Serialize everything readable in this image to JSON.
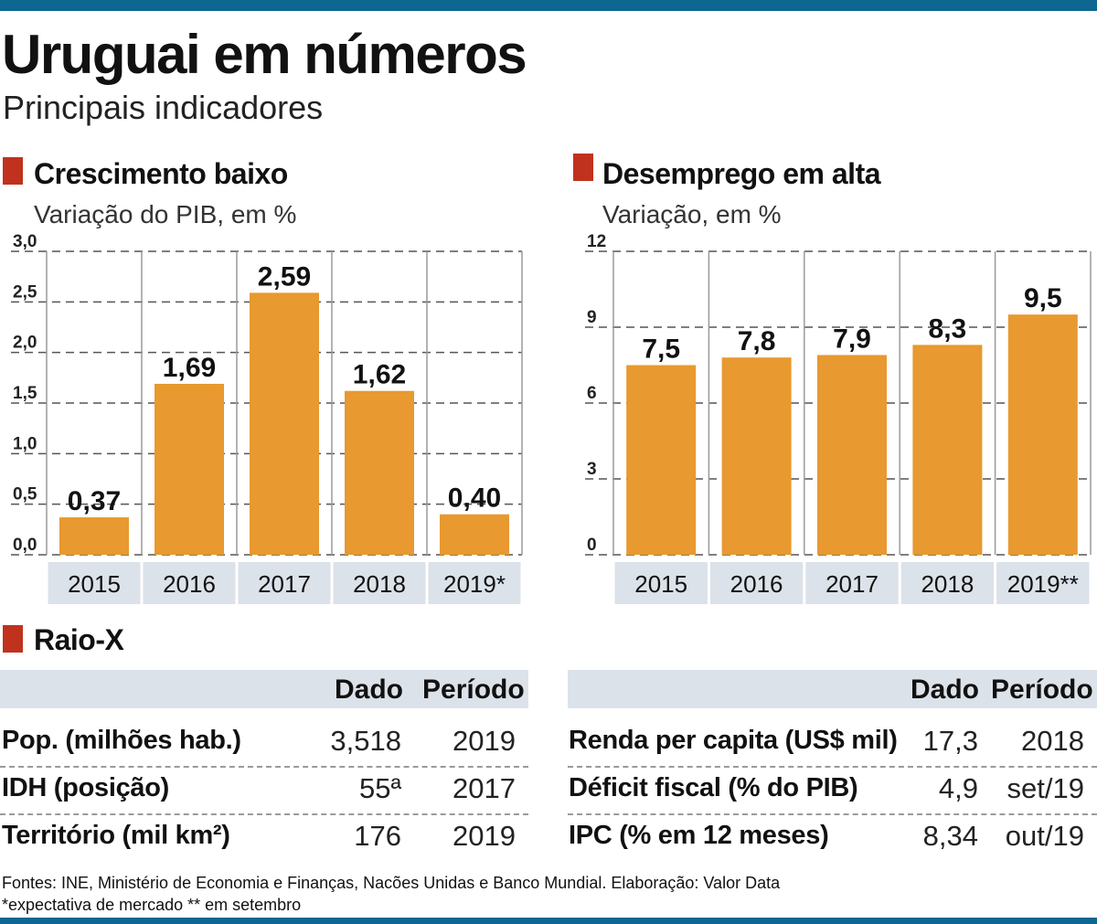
{
  "header": {
    "title": "Uruguai em números",
    "subtitle": "Principais indicadores"
  },
  "colors": {
    "bar": "#e8992f",
    "accent_marker": "#c0321e",
    "rule": "#0e6791",
    "category_band": "#dce2ea"
  },
  "chart_data": [
    {
      "type": "bar",
      "title": "Crescimento baixo",
      "subtitle": "Variação do PIB, em %",
      "categories": [
        "2015",
        "2016",
        "2017",
        "2018",
        "2019*"
      ],
      "values": [
        0.37,
        1.69,
        2.59,
        1.62,
        0.4
      ],
      "value_labels": [
        "0,37",
        "1,69",
        "2,59",
        "1,62",
        "0,40"
      ],
      "yticks": [
        "0,0",
        "0,5",
        "1,0",
        "1,5",
        "2,0",
        "2,5",
        "3,0"
      ],
      "ylim": [
        0,
        3.0
      ],
      "grid": true
    },
    {
      "type": "bar",
      "title": "Desemprego em alta",
      "subtitle": "Variação, em %",
      "categories": [
        "2015",
        "2016",
        "2017",
        "2018",
        "2019**"
      ],
      "values": [
        7.5,
        7.8,
        7.9,
        8.3,
        9.5
      ],
      "value_labels": [
        "7,5",
        "7,8",
        "7,9",
        "8,3",
        "9,5"
      ],
      "yticks": [
        "0",
        "3",
        "6",
        "9",
        "12"
      ],
      "ylim": [
        0,
        12
      ],
      "grid": true
    }
  ],
  "raio_x": {
    "title": "Raio-X",
    "col_dado": "Dado",
    "col_periodo": "Período",
    "left_rows": [
      {
        "label": "Pop. (milhões hab.)",
        "dado": "3,518",
        "periodo": "2019"
      },
      {
        "label": "IDH (posição)",
        "dado": "55ª",
        "periodo": "2017"
      },
      {
        "label": "Território (mil km²)",
        "dado": "176",
        "periodo": "2019"
      }
    ],
    "right_rows": [
      {
        "label": "Renda per capita (US$ mil)",
        "dado": "17,3",
        "periodo": "2018"
      },
      {
        "label": "Déficit fiscal (% do PIB)",
        "dado": "4,9",
        "periodo": "set/19"
      },
      {
        "label": "IPC (% em 12 meses)",
        "dado": "8,34",
        "periodo": "out/19"
      }
    ]
  },
  "footer": {
    "sources": "Fontes: INE, Ministério de Economia e Finanças, Nacões Unidas e Banco Mundial. Elaboração: Valor Data",
    "note": "*expectativa de mercado ** em setembro"
  }
}
